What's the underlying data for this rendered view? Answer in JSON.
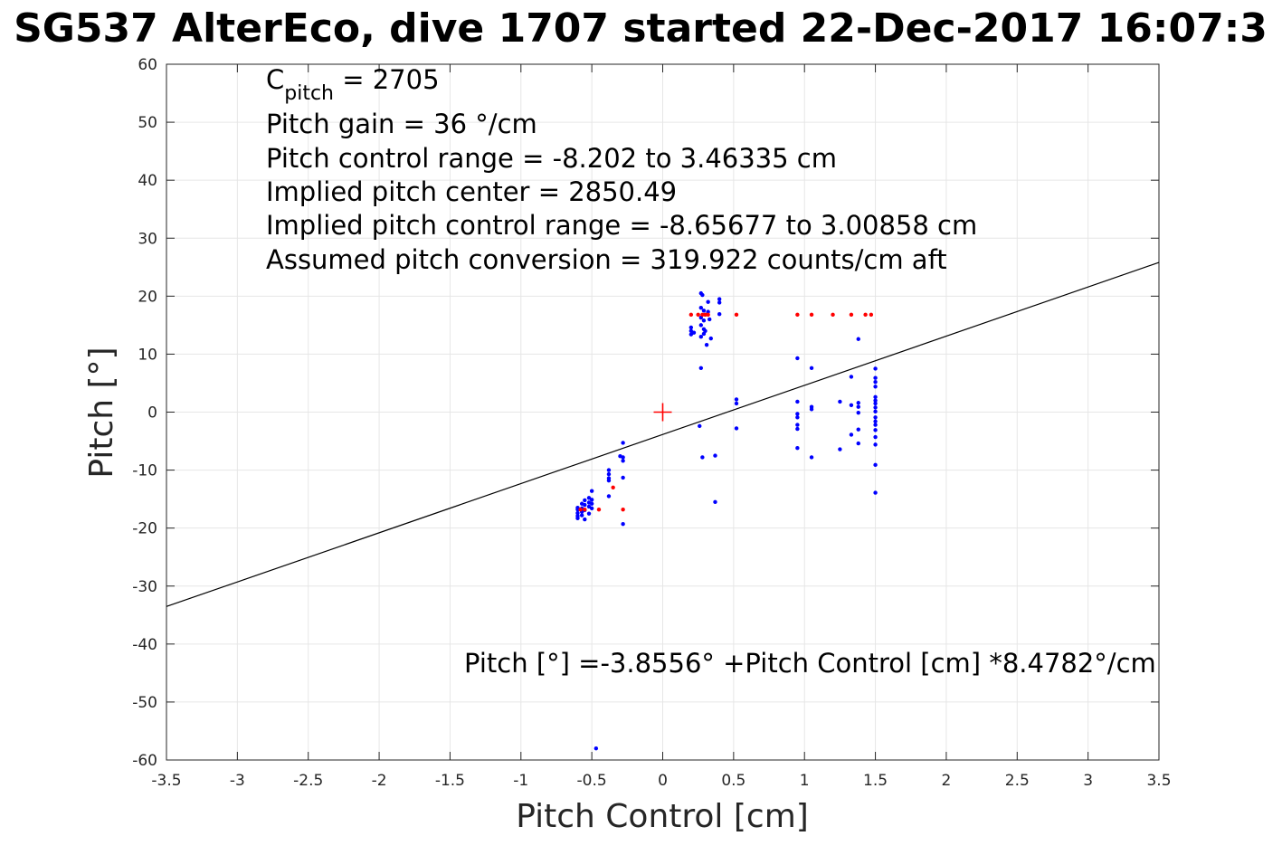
{
  "chart_data": {
    "type": "scatter",
    "title": "SG537 AlterEco, dive 1707 started 22-Dec-2017 16:07:3",
    "xlabel": "Pitch Control [cm]",
    "ylabel": "Pitch [°]",
    "xlim": [
      -3.5,
      3.5
    ],
    "ylim": [
      -60,
      60
    ],
    "x_ticks": [
      "-3.5",
      "-3",
      "-2.5",
      "-2",
      "-1.5",
      "-1",
      "-0.5",
      "0",
      "0.5",
      "1",
      "1.5",
      "2",
      "2.5",
      "3",
      "3.5"
    ],
    "y_ticks": [
      "60",
      "50",
      "40",
      "30",
      "20",
      "10",
      "0",
      "-10",
      "-20",
      "-30",
      "-40",
      "-50",
      "-60"
    ],
    "grid": true,
    "annotations": {
      "c_pitch_symbol": "C",
      "c_pitch_subscript": "pitch",
      "c_pitch_value": " = 2705",
      "lines": [
        "Pitch gain = 36 °/cm",
        "Pitch control range = -8.202 to 3.46335 cm",
        "Implied pitch center = 2850.49",
        "Implied pitch control range = -8.65677 to 3.00858 cm",
        "Assumed pitch conversion = 319.922 counts/cm aft"
      ],
      "fit_equation": "Pitch [°] =-3.8556° +Pitch Control [cm] *8.4782°/cm"
    },
    "fit_line": {
      "intercept": -3.8556,
      "slope": 8.4782,
      "color": "#000000"
    },
    "center_marker": {
      "x": 0,
      "y": 0,
      "color": "#ff0000"
    },
    "series": [
      {
        "color": "#0000ff",
        "points": [
          [
            -0.6,
            -16.8
          ],
          [
            -0.6,
            -17.4
          ],
          [
            -0.6,
            -17.9
          ],
          [
            -0.6,
            -18.3
          ],
          [
            -0.6,
            -16.5
          ],
          [
            -0.57,
            -15.8
          ],
          [
            -0.57,
            -16.6
          ],
          [
            -0.57,
            -17.2
          ],
          [
            -0.57,
            -17.8
          ],
          [
            -0.55,
            -15.2
          ],
          [
            -0.55,
            -16.0
          ],
          [
            -0.55,
            -16.9
          ],
          [
            -0.55,
            -18.5
          ],
          [
            -0.52,
            -14.8
          ],
          [
            -0.52,
            -15.6
          ],
          [
            -0.52,
            -16.3
          ],
          [
            -0.52,
            -17.5
          ],
          [
            -0.5,
            -13.6
          ],
          [
            -0.5,
            -15.1
          ],
          [
            -0.5,
            -15.8
          ],
          [
            -0.5,
            -16.6
          ],
          [
            -0.38,
            -10.0
          ],
          [
            -0.38,
            -10.7
          ],
          [
            -0.38,
            -11.4
          ],
          [
            -0.38,
            -11.8
          ],
          [
            -0.38,
            -14.5
          ],
          [
            -0.3,
            -7.6
          ],
          [
            -0.28,
            -5.3
          ],
          [
            -0.28,
            -7.8
          ],
          [
            -0.28,
            -8.4
          ],
          [
            -0.28,
            -11.3
          ],
          [
            -0.28,
            -19.3
          ],
          [
            -0.47,
            -58.0
          ],
          [
            0.2,
            13.4
          ],
          [
            0.2,
            14.0
          ],
          [
            0.2,
            14.6
          ],
          [
            0.22,
            13.7
          ],
          [
            0.27,
            20.5
          ],
          [
            0.27,
            18.0
          ],
          [
            0.27,
            16.3
          ],
          [
            0.27,
            15.0
          ],
          [
            0.27,
            13.0
          ],
          [
            0.27,
            7.6
          ],
          [
            0.26,
            -2.4
          ],
          [
            0.28,
            -7.8
          ],
          [
            0.28,
            20.2
          ],
          [
            0.29,
            17.5
          ],
          [
            0.29,
            15.8
          ],
          [
            0.29,
            14.3
          ],
          [
            0.29,
            13.5
          ],
          [
            0.3,
            16.8
          ],
          [
            0.3,
            14.0
          ],
          [
            0.31,
            11.6
          ],
          [
            0.32,
            17.3
          ],
          [
            0.32,
            19.0
          ],
          [
            0.33,
            16.0
          ],
          [
            0.34,
            12.7
          ],
          [
            0.37,
            -7.5
          ],
          [
            0.37,
            -15.5
          ],
          [
            0.4,
            19.5
          ],
          [
            0.4,
            18.9
          ],
          [
            0.4,
            16.9
          ],
          [
            0.52,
            2.2
          ],
          [
            0.52,
            1.5
          ],
          [
            0.52,
            -2.8
          ],
          [
            0.95,
            9.3
          ],
          [
            0.95,
            1.8
          ],
          [
            0.95,
            -0.3
          ],
          [
            0.95,
            -0.9
          ],
          [
            0.95,
            -2.2
          ],
          [
            0.95,
            -2.9
          ],
          [
            0.95,
            -6.2
          ],
          [
            1.05,
            7.6
          ],
          [
            1.05,
            0.9
          ],
          [
            1.05,
            0.5
          ],
          [
            1.05,
            -7.8
          ],
          [
            1.25,
            1.8
          ],
          [
            1.25,
            -6.4
          ],
          [
            1.33,
            6.1
          ],
          [
            1.33,
            1.2
          ],
          [
            1.33,
            -3.9
          ],
          [
            1.38,
            12.6
          ],
          [
            1.38,
            1.6
          ],
          [
            1.38,
            0.9
          ],
          [
            1.38,
            -0.1
          ],
          [
            1.38,
            -3.0
          ],
          [
            1.38,
            -5.4
          ],
          [
            1.5,
            7.5
          ],
          [
            1.5,
            5.9
          ],
          [
            1.5,
            5.2
          ],
          [
            1.5,
            4.4
          ],
          [
            1.5,
            2.6
          ],
          [
            1.5,
            2.0
          ],
          [
            1.5,
            1.5
          ],
          [
            1.5,
            0.8
          ],
          [
            1.5,
            0.1
          ],
          [
            1.5,
            -0.9
          ],
          [
            1.5,
            -1.6
          ],
          [
            1.5,
            -2.2
          ],
          [
            1.5,
            -3.1
          ],
          [
            1.5,
            -4.3
          ],
          [
            1.5,
            -5.6
          ],
          [
            1.5,
            -9.1
          ],
          [
            1.5,
            -13.9
          ]
        ]
      },
      {
        "color": "#ff0000",
        "points": [
          [
            -0.58,
            -16.8
          ],
          [
            -0.55,
            -16.8
          ],
          [
            -0.45,
            -16.8
          ],
          [
            -0.35,
            -13.0
          ],
          [
            -0.28,
            -16.8
          ],
          [
            0.2,
            16.8
          ],
          [
            0.25,
            16.8
          ],
          [
            0.28,
            16.8
          ],
          [
            0.3,
            16.8
          ],
          [
            0.32,
            16.8
          ],
          [
            0.52,
            16.8
          ],
          [
            0.95,
            16.8
          ],
          [
            1.05,
            16.8
          ],
          [
            1.2,
            16.8
          ],
          [
            1.33,
            16.8
          ],
          [
            1.43,
            16.8
          ],
          [
            1.47,
            16.8
          ]
        ]
      }
    ]
  }
}
